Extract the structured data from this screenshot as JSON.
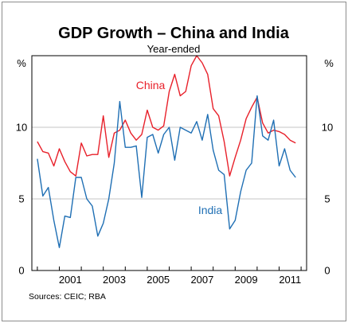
{
  "chart_data": {
    "type": "line",
    "title": "GDP Growth – China and India",
    "subtitle": "Year-ended",
    "y_unit_left": "%",
    "y_unit_right": "%",
    "ylim": [
      0,
      15
    ],
    "yticks": [
      "0",
      "5",
      "10"
    ],
    "xlim": [
      1999.75,
      2012.25
    ],
    "xticks": [
      "2001",
      "2003",
      "2005",
      "2007",
      "2009",
      "2011"
    ],
    "grid": "horizontal",
    "source": "Sources: CEIC; RBA",
    "colors": {
      "China": "#e8202a",
      "India": "#1f6fb4"
    },
    "series": [
      {
        "name": "China",
        "color": "#e8202a",
        "x": [
          2000.0,
          2000.25,
          2000.5,
          2000.75,
          2001.0,
          2001.25,
          2001.5,
          2001.75,
          2002.0,
          2002.25,
          2002.5,
          2002.75,
          2003.0,
          2003.25,
          2003.5,
          2003.75,
          2004.0,
          2004.25,
          2004.5,
          2004.75,
          2005.0,
          2005.25,
          2005.5,
          2005.75,
          2006.0,
          2006.25,
          2006.5,
          2006.75,
          2007.0,
          2007.25,
          2007.5,
          2007.75,
          2008.0,
          2008.25,
          2008.5,
          2008.75,
          2009.0,
          2009.25,
          2009.5,
          2009.75,
          2010.0,
          2010.25,
          2010.5,
          2010.75,
          2011.0,
          2011.25,
          2011.5,
          2011.75
        ],
        "values": [
          9.0,
          8.3,
          8.2,
          7.3,
          8.5,
          7.6,
          6.9,
          6.6,
          8.9,
          8.0,
          8.1,
          8.1,
          10.8,
          7.9,
          9.6,
          9.8,
          10.5,
          9.6,
          9.1,
          9.5,
          11.2,
          10.0,
          9.8,
          10.1,
          12.5,
          13.7,
          12.2,
          12.5,
          14.3,
          15.0,
          14.5,
          13.7,
          11.3,
          10.8,
          9.0,
          6.6,
          7.9,
          9.1,
          10.6,
          11.4,
          12.1,
          10.3,
          9.6,
          9.8,
          9.7,
          9.5,
          9.1,
          8.9
        ]
      },
      {
        "name": "India",
        "color": "#1f6fb4",
        "x": [
          2000.0,
          2000.25,
          2000.5,
          2000.75,
          2001.0,
          2001.25,
          2001.5,
          2001.75,
          2002.0,
          2002.25,
          2002.5,
          2002.75,
          2003.0,
          2003.25,
          2003.5,
          2003.75,
          2004.0,
          2004.25,
          2004.5,
          2004.75,
          2005.0,
          2005.25,
          2005.5,
          2005.75,
          2006.0,
          2006.25,
          2006.5,
          2006.75,
          2007.0,
          2007.25,
          2007.5,
          2007.75,
          2008.0,
          2008.25,
          2008.5,
          2008.75,
          2009.0,
          2009.25,
          2009.5,
          2009.75,
          2010.0,
          2010.25,
          2010.5,
          2010.75,
          2011.0,
          2011.25,
          2011.5,
          2011.75
        ],
        "values": [
          7.8,
          5.2,
          5.8,
          3.5,
          1.6,
          3.8,
          3.7,
          6.5,
          6.5,
          5.0,
          4.5,
          2.4,
          3.3,
          5.0,
          7.5,
          11.8,
          8.6,
          8.6,
          8.7,
          5.1,
          9.3,
          9.5,
          8.2,
          9.5,
          10.0,
          7.7,
          10.0,
          9.8,
          9.6,
          10.4,
          9.1,
          10.9,
          8.4,
          7.0,
          6.7,
          2.9,
          3.5,
          5.5,
          7.0,
          7.5,
          12.2,
          9.4,
          9.1,
          10.5,
          7.3,
          8.5,
          7.0,
          6.5
        ]
      }
    ],
    "series_labels": [
      "China",
      "India"
    ]
  }
}
